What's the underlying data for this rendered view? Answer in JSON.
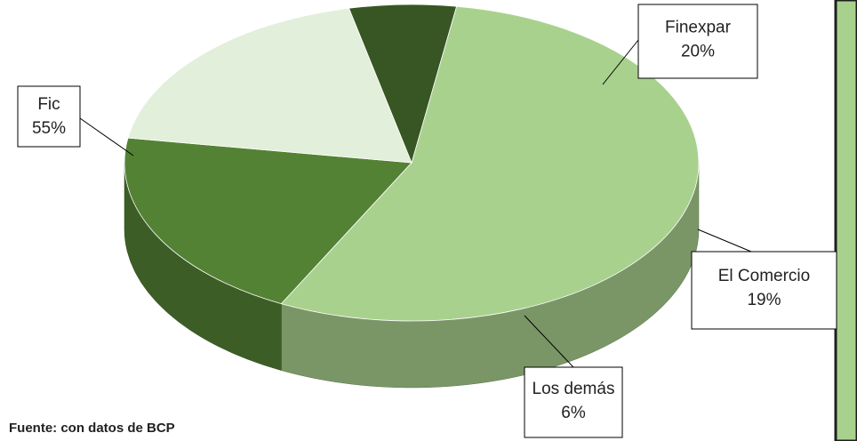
{
  "chart_data": {
    "type": "pie",
    "categories": [
      "Fic",
      "Finexpar",
      "El Comercio",
      "Los demás"
    ],
    "values": [
      55,
      20,
      19,
      6
    ],
    "value_labels": [
      "55%",
      "20%",
      "19%",
      "6%"
    ],
    "colors": [
      "#a9d18e",
      "#548235",
      "#e2efda",
      "#375623"
    ],
    "source": "Fuente: con datos de BCP"
  }
}
